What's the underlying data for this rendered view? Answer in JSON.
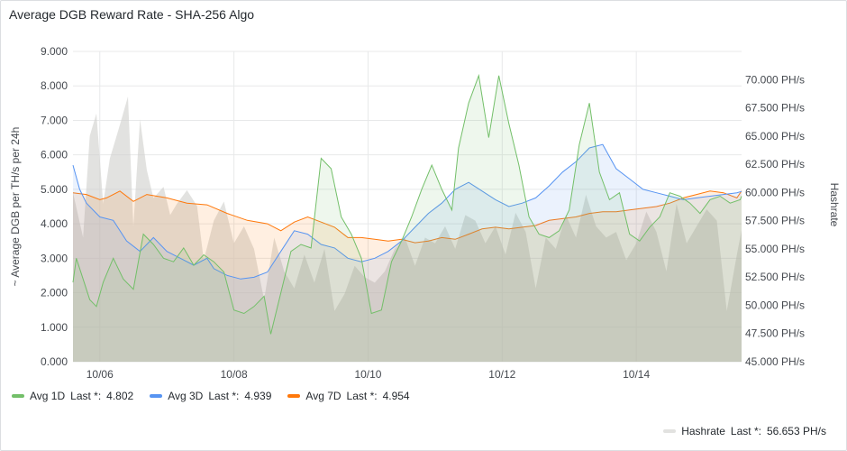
{
  "panel": {
    "title": "Average DGB Reward Rate - SHA-256 Algo"
  },
  "legend": {
    "items": [
      {
        "name": "Avg 1D",
        "stat_label": "Last *:",
        "stat_value": "4.802",
        "color": "#73bf69"
      },
      {
        "name": "Avg 3D",
        "stat_label": "Last *:",
        "stat_value": "4.939",
        "color": "#5794f2"
      },
      {
        "name": "Avg 7D",
        "stat_label": "Last *:",
        "stat_value": "4.954",
        "color": "#ff780a"
      }
    ],
    "hashrate": {
      "name": "Hashrate",
      "stat_label": "Last *:",
      "stat_value": "56.653 PH/s",
      "color": "#e2e2e0"
    }
  },
  "chart_data": {
    "type": "area",
    "x_tick_labels": [
      "10/06",
      "10/08",
      "10/10",
      "10/12",
      "10/14"
    ],
    "x_tick_days": [
      6,
      8,
      10,
      12,
      14
    ],
    "xlim_days": [
      5.6,
      15.57
    ],
    "ylabel": "~ Average DGB per TH/s per 24h",
    "ylim": [
      0,
      9
    ],
    "y_ticks": [
      "0.000",
      "1.000",
      "2.000",
      "3.000",
      "4.000",
      "5.000",
      "6.000",
      "7.000",
      "8.000",
      "9.000"
    ],
    "y2label": "Hashrate",
    "y2lim": [
      45000,
      72500
    ],
    "y2_ticks": [
      "45.000 PH/s",
      "47.500 PH/s",
      "50.000 PH/s",
      "52.500 PH/s",
      "55.000 PH/s",
      "57.500 PH/s",
      "60.000 PH/s",
      "62.500 PH/s",
      "65.000 PH/s",
      "67.500 PH/s",
      "70.000 PH/s"
    ],
    "y2_tick_values": [
      45000,
      47500,
      50000,
      52500,
      55000,
      57500,
      60000,
      62500,
      65000,
      67500,
      70000
    ],
    "grid": true,
    "series": [
      {
        "name": "Hashrate",
        "axis": "right",
        "color": "#c8c8c4",
        "x": [
          5.6,
          5.75,
          5.85,
          5.95,
          6.05,
          6.15,
          6.3,
          6.42,
          6.5,
          6.6,
          6.7,
          6.8,
          6.95,
          7.05,
          7.15,
          7.3,
          7.45,
          7.55,
          7.7,
          7.85,
          8.0,
          8.15,
          8.3,
          8.45,
          8.6,
          8.75,
          8.9,
          9.05,
          9.2,
          9.35,
          9.5,
          9.65,
          9.8,
          9.95,
          10.1,
          10.25,
          10.4,
          10.55,
          10.7,
          10.85,
          11.0,
          11.15,
          11.3,
          11.45,
          11.6,
          11.75,
          11.9,
          12.05,
          12.2,
          12.35,
          12.5,
          12.65,
          12.8,
          12.95,
          13.1,
          13.25,
          13.4,
          13.55,
          13.7,
          13.85,
          14.0,
          14.15,
          14.3,
          14.45,
          14.6,
          14.75,
          14.9,
          15.05,
          15.2,
          15.35,
          15.5,
          15.57
        ],
        "values": [
          60000,
          56000,
          65000,
          67000,
          59000,
          63000,
          66000,
          68500,
          57000,
          66500,
          62000,
          59500,
          60500,
          58000,
          59000,
          60200,
          58800,
          54000,
          57500,
          59200,
          55500,
          57000,
          55000,
          50500,
          56000,
          53000,
          51500,
          54500,
          52000,
          55000,
          49500,
          51000,
          53500,
          52500,
          52000,
          53000,
          55000,
          56000,
          53500,
          56000,
          55500,
          57000,
          55000,
          58000,
          57500,
          55500,
          57000,
          54500,
          58200,
          56500,
          51500,
          56000,
          55000,
          58000,
          56000,
          59800,
          57000,
          56000,
          56500,
          54000,
          55500,
          58300,
          56500,
          53000,
          59000,
          55500,
          57000,
          58500,
          57500,
          49500,
          54500,
          56653
        ]
      },
      {
        "name": "Avg 7D",
        "axis": "left",
        "color": "#ff780a",
        "x": [
          5.6,
          5.8,
          6.0,
          6.1,
          6.3,
          6.5,
          6.7,
          7.0,
          7.3,
          7.6,
          7.9,
          8.2,
          8.5,
          8.7,
          8.9,
          9.1,
          9.3,
          9.5,
          9.7,
          9.9,
          10.1,
          10.3,
          10.5,
          10.7,
          10.9,
          11.1,
          11.3,
          11.5,
          11.7,
          11.9,
          12.1,
          12.3,
          12.5,
          12.7,
          12.9,
          13.1,
          13.3,
          13.5,
          13.7,
          13.9,
          14.1,
          14.3,
          14.5,
          14.7,
          14.9,
          15.1,
          15.3,
          15.5,
          15.57
        ],
        "values": [
          4.9,
          4.85,
          4.7,
          4.75,
          4.95,
          4.65,
          4.85,
          4.75,
          4.6,
          4.55,
          4.3,
          4.1,
          4.0,
          3.8,
          4.05,
          4.2,
          4.05,
          3.9,
          3.6,
          3.6,
          3.55,
          3.5,
          3.55,
          3.45,
          3.5,
          3.6,
          3.55,
          3.7,
          3.85,
          3.9,
          3.85,
          3.9,
          3.95,
          4.1,
          4.15,
          4.2,
          4.3,
          4.35,
          4.35,
          4.4,
          4.45,
          4.5,
          4.6,
          4.75,
          4.85,
          4.95,
          4.9,
          4.75,
          4.954
        ]
      },
      {
        "name": "Avg 3D",
        "axis": "left",
        "color": "#5794f2",
        "x": [
          5.6,
          5.7,
          5.8,
          6.0,
          6.2,
          6.4,
          6.6,
          6.8,
          7.0,
          7.2,
          7.4,
          7.6,
          7.7,
          7.9,
          8.1,
          8.3,
          8.5,
          8.7,
          8.9,
          9.1,
          9.3,
          9.5,
          9.7,
          9.9,
          10.1,
          10.3,
          10.5,
          10.7,
          10.9,
          11.1,
          11.3,
          11.5,
          11.7,
          11.9,
          12.1,
          12.3,
          12.5,
          12.7,
          12.9,
          13.1,
          13.3,
          13.5,
          13.7,
          13.9,
          14.1,
          14.3,
          14.5,
          14.7,
          14.9,
          15.1,
          15.3,
          15.5,
          15.57
        ],
        "values": [
          5.7,
          5.0,
          4.6,
          4.2,
          4.1,
          3.5,
          3.2,
          3.6,
          3.2,
          3.0,
          2.8,
          3.0,
          2.7,
          2.5,
          2.4,
          2.45,
          2.6,
          3.2,
          3.8,
          3.7,
          3.4,
          3.3,
          3.0,
          2.9,
          3.0,
          3.2,
          3.5,
          3.9,
          4.3,
          4.6,
          5.0,
          5.2,
          4.95,
          4.7,
          4.5,
          4.6,
          4.75,
          5.1,
          5.5,
          5.8,
          6.2,
          6.3,
          5.6,
          5.3,
          5.0,
          4.9,
          4.8,
          4.7,
          4.75,
          4.8,
          4.85,
          4.9,
          4.939
        ]
      },
      {
        "name": "Avg 1D",
        "axis": "left",
        "color": "#73bf69",
        "x": [
          5.6,
          5.65,
          5.75,
          5.85,
          5.95,
          6.05,
          6.2,
          6.35,
          6.5,
          6.65,
          6.8,
          6.95,
          7.1,
          7.25,
          7.4,
          7.55,
          7.7,
          7.85,
          8.0,
          8.15,
          8.3,
          8.45,
          8.55,
          8.7,
          8.85,
          9.0,
          9.15,
          9.3,
          9.45,
          9.6,
          9.75,
          9.9,
          10.05,
          10.2,
          10.35,
          10.5,
          10.65,
          10.8,
          10.95,
          11.1,
          11.25,
          11.35,
          11.5,
          11.65,
          11.8,
          11.95,
          12.1,
          12.25,
          12.4,
          12.55,
          12.7,
          12.85,
          13.0,
          13.15,
          13.3,
          13.45,
          13.6,
          13.75,
          13.9,
          14.05,
          14.2,
          14.35,
          14.5,
          14.65,
          14.8,
          14.95,
          15.1,
          15.25,
          15.4,
          15.55,
          15.57
        ],
        "values": [
          2.3,
          3.0,
          2.4,
          1.8,
          1.6,
          2.3,
          3.0,
          2.4,
          2.1,
          3.7,
          3.4,
          3.0,
          2.9,
          3.3,
          2.8,
          3.1,
          2.9,
          2.6,
          1.5,
          1.4,
          1.6,
          1.9,
          0.8,
          2.0,
          3.2,
          3.4,
          3.3,
          5.9,
          5.6,
          4.2,
          3.7,
          3.0,
          1.4,
          1.5,
          2.9,
          3.5,
          4.2,
          5.0,
          5.7,
          5.0,
          4.4,
          6.2,
          7.5,
          8.3,
          6.5,
          8.3,
          6.9,
          5.7,
          4.2,
          3.7,
          3.6,
          3.8,
          4.4,
          6.3,
          7.5,
          5.5,
          4.7,
          4.9,
          3.7,
          3.5,
          3.9,
          4.2,
          4.9,
          4.8,
          4.6,
          4.3,
          4.7,
          4.8,
          4.6,
          4.7,
          4.802
        ]
      }
    ]
  }
}
